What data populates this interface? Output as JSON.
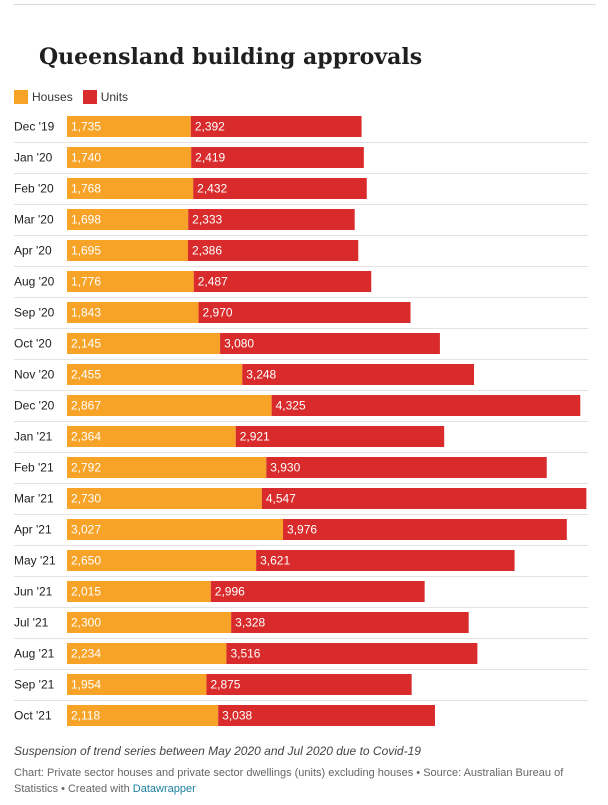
{
  "title": "Queensland building approvals",
  "legend": {
    "houses": "Houses",
    "units": "Units"
  },
  "colors": {
    "houses": "#f7a328",
    "units": "#d92b2b"
  },
  "note": "Suspension of trend series between May 2020 and Jul 2020 due to Covid-19",
  "source": {
    "prefix": "Chart: Private sector houses and private sector dwellings (units) excluding houses • Source: Australian Bureau of Statistics • Created with ",
    "credit": "Datawrapper"
  },
  "chart_data": {
    "type": "bar",
    "stacked": true,
    "orientation": "horizontal",
    "title": "Queensland building approvals",
    "legend_position": "top-left",
    "xlim": [
      0,
      7300
    ],
    "categories": [
      "Dec '19",
      "Jan '20",
      "Feb '20",
      "Mar '20",
      "Apr '20",
      "Aug '20",
      "Sep '20",
      "Oct '20",
      "Nov '20",
      "Dec '20",
      "Jan '21",
      "Feb '21",
      "Mar '21",
      "Apr '21",
      "May '21",
      "Jun '21",
      "Jul '21",
      "Aug '21",
      "Sep '21",
      "Oct '21"
    ],
    "series": [
      {
        "name": "Houses",
        "values": [
          1735,
          1740,
          1768,
          1698,
          1695,
          1776,
          1843,
          2145,
          2455,
          2867,
          2364,
          2792,
          2730,
          3027,
          2650,
          2015,
          2300,
          2234,
          1954,
          2118
        ]
      },
      {
        "name": "Units",
        "values": [
          2392,
          2419,
          2432,
          2333,
          2386,
          2487,
          2970,
          3080,
          3248,
          4325,
          2921,
          3930,
          4547,
          3976,
          3621,
          2996,
          3328,
          3516,
          2875,
          3038
        ]
      }
    ]
  }
}
